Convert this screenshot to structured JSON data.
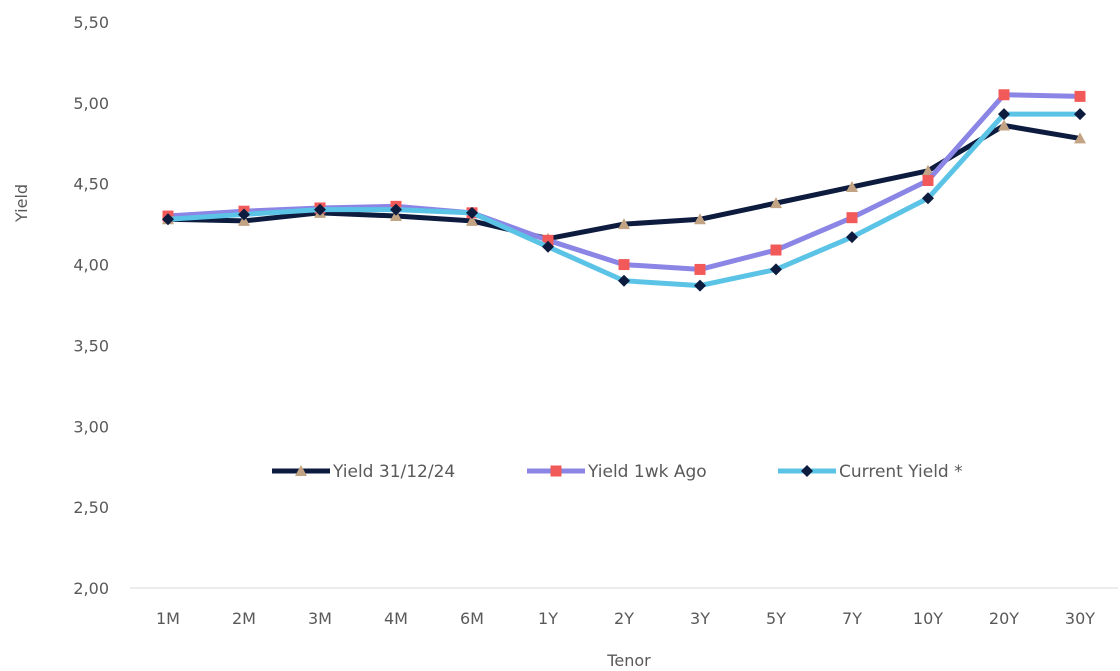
{
  "chart_data": {
    "type": "line",
    "xlabel": "Tenor",
    "ylabel": "Yield",
    "categories": [
      "1M",
      "2M",
      "3M",
      "4M",
      "6M",
      "1Y",
      "2Y",
      "3Y",
      "5Y",
      "7Y",
      "10Y",
      "20Y",
      "30Y"
    ],
    "ylim": [
      2.0,
      5.5
    ],
    "yticks": [
      "2,00",
      "2,50",
      "3,00",
      "3,50",
      "4,00",
      "4,50",
      "5,00",
      "5,50"
    ],
    "ytick_values": [
      2.0,
      2.5,
      3.0,
      3.5,
      4.0,
      4.5,
      5.0,
      5.5
    ],
    "grid": false,
    "legend_position": "inside-bottom",
    "series": [
      {
        "name": "Yield 31/12/24",
        "line_color": "#0d1b3e",
        "marker": "triangle",
        "marker_color": "#c2a383",
        "values": [
          4.28,
          4.27,
          4.32,
          4.3,
          4.27,
          4.16,
          4.25,
          4.28,
          4.38,
          4.48,
          4.58,
          4.86,
          4.78
        ]
      },
      {
        "name": "Yield 1wk Ago",
        "line_color": "#8b85e6",
        "marker": "square",
        "marker_color": "#f25a5a",
        "values": [
          4.3,
          4.33,
          4.35,
          4.36,
          4.32,
          4.15,
          4.0,
          3.97,
          4.09,
          4.29,
          4.52,
          5.05,
          5.04
        ]
      },
      {
        "name": "Current Yield *",
        "line_color": "#5bc3e6",
        "marker": "diamond",
        "marker_color": "#0d1b3e",
        "values": [
          4.28,
          4.31,
          4.34,
          4.34,
          4.32,
          4.11,
          3.9,
          3.87,
          3.97,
          4.17,
          4.41,
          4.93,
          4.93
        ]
      }
    ]
  }
}
